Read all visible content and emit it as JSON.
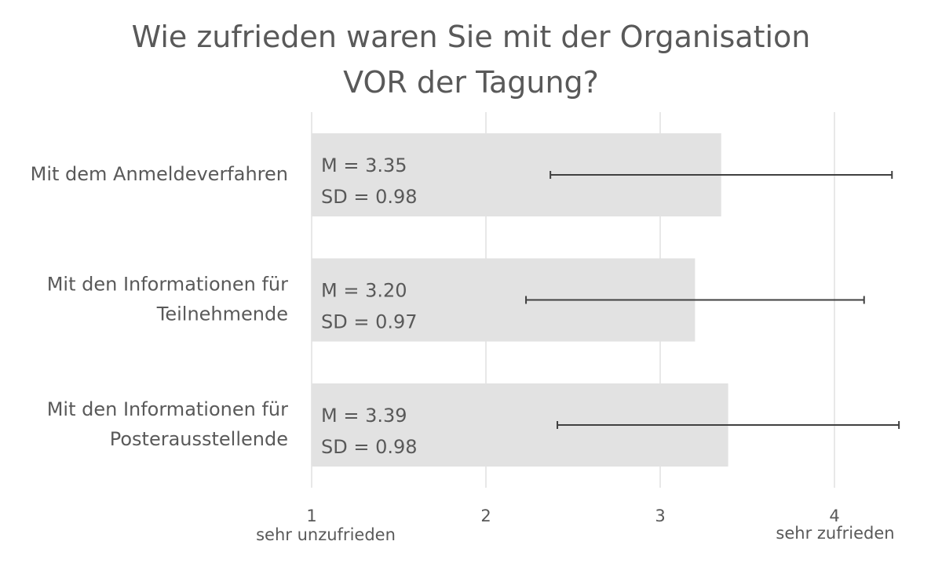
{
  "chart_data": {
    "type": "bar",
    "orientation": "horizontal",
    "title_lines": [
      "Wie zufrieden waren Sie mit der Organisation",
      "VOR der Tagung?"
    ],
    "categories": [
      [
        "Mit dem Anmeldeverfahren"
      ],
      [
        "Mit den Informationen für",
        "Teilnehmende"
      ],
      [
        "Mit den Informationen für",
        "Posterausstellende"
      ]
    ],
    "values": [
      3.35,
      3.2,
      3.39
    ],
    "sd": [
      0.98,
      0.97,
      0.98
    ],
    "bar_labels": [
      [
        "M = 3.35",
        "SD = 0.98"
      ],
      [
        "M = 3.20",
        "SD = 0.97"
      ],
      [
        "M = 3.39",
        "SD = 0.98"
      ]
    ],
    "x_ticks": [
      1,
      2,
      3,
      4
    ],
    "x_tick_labels": [
      "1",
      "2",
      "3",
      "4"
    ],
    "xlim": [
      1,
      4.4
    ],
    "scale_labels": {
      "low": "sehr unzufrieden",
      "high": "sehr zufrieden"
    },
    "grid": true,
    "legend": "none",
    "colors": {
      "bar": "#e2e2e2",
      "error_bar": "#404040",
      "grid": "#d9d9d9",
      "text": "#595959"
    }
  }
}
